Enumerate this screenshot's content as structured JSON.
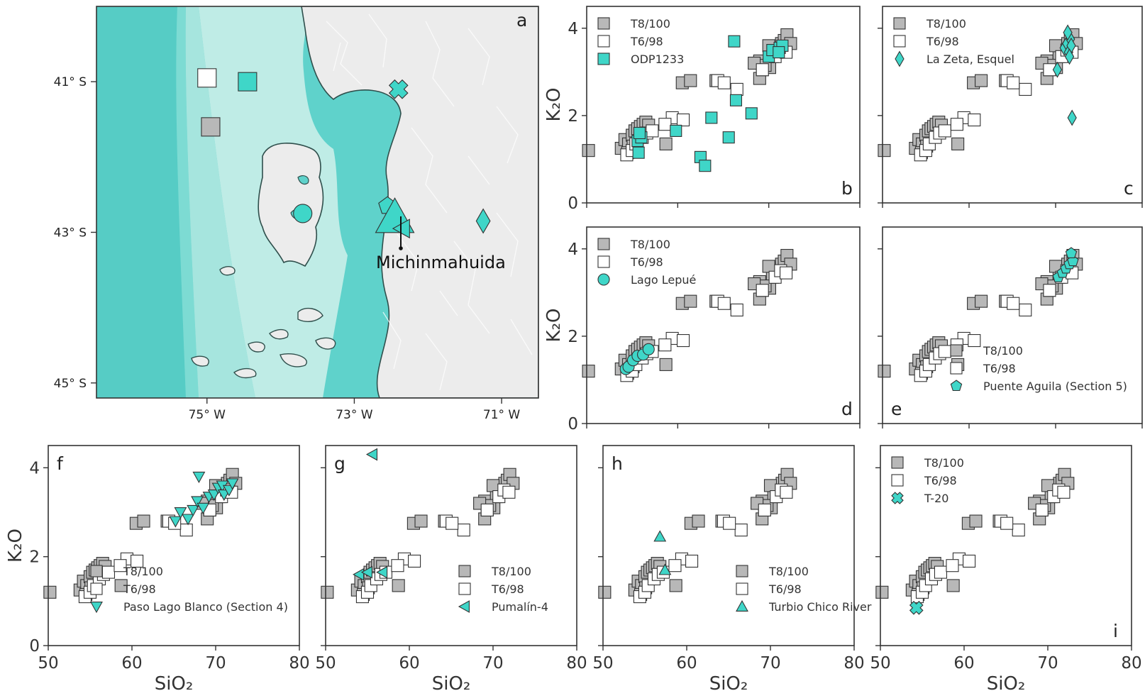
{
  "colors": {
    "teal": "#3fd6c8",
    "teal_light": "#b9e9e3",
    "ocean_deep": "#5fd2cb",
    "ocean_mid": "#8fe0d8",
    "grey_fill": "#b8b8b8",
    "white_fill": "#ffffff",
    "edge": "#333333",
    "land": "#efefef"
  },
  "map": {
    "panel_letter": "a",
    "lat_ticks": [
      "41° S",
      "43° S",
      "45° S"
    ],
    "lon_ticks": [
      "75° W",
      "73° W",
      "71° W"
    ],
    "volcano_label": "Michinmahuida",
    "sites": [
      {
        "name": "T6/98",
        "symbol": "square",
        "fill": "white",
        "lon": -75.0,
        "lat": -40.95
      },
      {
        "name": "ODP1233",
        "symbol": "square",
        "fill": "teal",
        "lon": -74.45,
        "lat": -41.0
      },
      {
        "name": "T8/100",
        "symbol": "square",
        "fill": "grey",
        "lon": -74.95,
        "lat": -41.6
      },
      {
        "name": "T-20",
        "symbol": "cross",
        "fill": "teal",
        "lon": -72.4,
        "lat": -41.1
      },
      {
        "name": "Lago Lepué",
        "symbol": "circle",
        "fill": "teal",
        "lon": -73.7,
        "lat": -42.75
      },
      {
        "name": "Puente Aguila (Section 5)",
        "symbol": "pentagon",
        "fill": "teal",
        "lon": -72.55,
        "lat": -42.65
      },
      {
        "name": "Turbio Chico River",
        "symbol": "triangle-up",
        "fill": "teal",
        "lon": -72.45,
        "lat": -42.8
      },
      {
        "name": "Pumalín-4",
        "symbol": "triangle-left",
        "fill": "teal",
        "lon": -72.35,
        "lat": -42.95
      },
      {
        "name": "La Zeta, Esquel",
        "symbol": "diamond",
        "fill": "teal",
        "lon": -71.25,
        "lat": -42.85
      }
    ]
  },
  "chart_data": [
    {
      "panel": "b",
      "type": "scatter",
      "xlabel": "",
      "ylabel": "K₂O",
      "xlim": [
        50,
        80
      ],
      "ylim": [
        0,
        4.5
      ],
      "yticks": [
        "0",
        "2",
        "4"
      ],
      "xticks": [],
      "legend_position": "top-left",
      "legend": [
        {
          "label": "T8/100",
          "symbol": "square",
          "fill": "grey"
        },
        {
          "label": "T6/98",
          "symbol": "square",
          "fill": "white"
        },
        {
          "label": "ODP1233",
          "symbol": "square",
          "fill": "teal"
        }
      ],
      "highlight": {
        "name": "ODP1233",
        "symbol": "square",
        "points": [
          [
            55.7,
            1.15
          ],
          [
            55.6,
            1.42
          ],
          [
            56.0,
            1.5
          ],
          [
            55.8,
            1.6
          ],
          [
            59.8,
            1.65
          ],
          [
            62.5,
            1.05
          ],
          [
            63.0,
            0.85
          ],
          [
            63.7,
            1.95
          ],
          [
            65.6,
            1.5
          ],
          [
            66.4,
            2.35
          ],
          [
            68.1,
            2.05
          ],
          [
            66.2,
            3.7
          ],
          [
            70.0,
            3.35
          ],
          [
            70.4,
            3.5
          ],
          [
            71.2,
            3.55
          ],
          [
            71.5,
            3.6
          ],
          [
            71.1,
            3.45
          ]
        ]
      }
    },
    {
      "panel": "c",
      "type": "scatter",
      "xlabel": "",
      "ylabel": "",
      "xlim": [
        50,
        80
      ],
      "ylim": [
        0,
        4.5
      ],
      "yticks": [],
      "xticks": [],
      "legend_position": "top-left",
      "legend": [
        {
          "label": "T8/100",
          "symbol": "square",
          "fill": "grey"
        },
        {
          "label": "T6/98",
          "symbol": "square",
          "fill": "white"
        },
        {
          "label": "La Zeta, Esquel",
          "symbol": "diamond",
          "fill": "teal"
        }
      ],
      "highlight": {
        "name": "La Zeta, Esquel",
        "symbol": "diamond",
        "points": [
          [
            70.2,
            3.05
          ],
          [
            71.0,
            3.55
          ],
          [
            71.3,
            3.65
          ],
          [
            71.5,
            3.45
          ],
          [
            71.7,
            3.75
          ],
          [
            71.4,
            3.9
          ],
          [
            71.8,
            3.6
          ],
          [
            71.6,
            3.35
          ],
          [
            71.9,
            1.95
          ]
        ]
      }
    },
    {
      "panel": "d",
      "type": "scatter",
      "xlabel": "",
      "ylabel": "K₂O",
      "xlim": [
        50,
        80
      ],
      "ylim": [
        0,
        4.5
      ],
      "yticks": [
        "0",
        "2",
        "4"
      ],
      "xticks": [],
      "legend_position": "top-left",
      "legend": [
        {
          "label": "T8/100",
          "symbol": "square",
          "fill": "grey"
        },
        {
          "label": "T6/98",
          "symbol": "square",
          "fill": "white"
        },
        {
          "label": "Lago Lepué",
          "symbol": "circle",
          "fill": "teal"
        }
      ],
      "highlight": {
        "name": "Lago Lepué",
        "symbol": "circle",
        "points": [
          [
            54.3,
            1.25
          ],
          [
            54.6,
            1.3
          ],
          [
            55.1,
            1.45
          ],
          [
            55.6,
            1.55
          ],
          [
            56.2,
            1.58
          ],
          [
            56.8,
            1.7
          ]
        ]
      }
    },
    {
      "panel": "e",
      "type": "scatter",
      "xlabel": "",
      "ylabel": "",
      "xlim": [
        50,
        80
      ],
      "ylim": [
        0,
        4.5
      ],
      "yticks": [],
      "xticks": [],
      "legend_position": "bottom-center",
      "legend": [
        {
          "label": "T8/100",
          "symbol": "square",
          "fill": "grey"
        },
        {
          "label": "T6/98",
          "symbol": "square",
          "fill": "white"
        },
        {
          "label": "Puente Aguila (Section 5)",
          "symbol": "pentagon",
          "fill": "teal"
        }
      ],
      "highlight": {
        "name": "Puente Aguila (Section 5)",
        "symbol": "pentagon",
        "points": [
          [
            70.3,
            3.35
          ],
          [
            70.8,
            3.45
          ],
          [
            71.2,
            3.55
          ],
          [
            71.6,
            3.65
          ],
          [
            72.0,
            3.72
          ],
          [
            71.8,
            3.9
          ]
        ]
      }
    },
    {
      "panel": "f",
      "type": "scatter",
      "xlabel": "SiO₂",
      "ylabel": "K₂O",
      "xlim": [
        50,
        80
      ],
      "ylim": [
        0,
        4.5
      ],
      "yticks": [
        "0",
        "2",
        "4"
      ],
      "xticks": [
        "50",
        "60",
        "70",
        "80"
      ],
      "legend_position": "bottom-left",
      "legend": [
        {
          "label": "T8/100",
          "symbol": "square",
          "fill": "grey"
        },
        {
          "label": "T6/98",
          "symbol": "square",
          "fill": "white"
        },
        {
          "label": "Paso Lago Blanco (Section 4)",
          "symbol": "triangle-down",
          "fill": "teal"
        }
      ],
      "highlight": {
        "name": "Paso Lago Blanco (Section 4)",
        "symbol": "triangle-down",
        "points": [
          [
            65.2,
            2.8
          ],
          [
            65.8,
            3.0
          ],
          [
            66.7,
            2.85
          ],
          [
            67.3,
            3.05
          ],
          [
            67.8,
            3.25
          ],
          [
            68.5,
            3.1
          ],
          [
            68.0,
            3.8
          ],
          [
            69.2,
            3.35
          ],
          [
            69.8,
            3.4
          ],
          [
            70.3,
            3.55
          ],
          [
            70.8,
            3.6
          ],
          [
            71.0,
            3.4
          ],
          [
            71.6,
            3.5
          ],
          [
            72.0,
            3.65
          ]
        ]
      }
    },
    {
      "panel": "g",
      "type": "scatter",
      "xlabel": "SiO₂",
      "ylabel": "",
      "xlim": [
        50,
        80
      ],
      "ylim": [
        0,
        4.5
      ],
      "yticks": [],
      "xticks": [
        "50",
        "60",
        "70",
        "80"
      ],
      "legend_position": "bottom-right",
      "legend": [
        {
          "label": "T8/100",
          "symbol": "square",
          "fill": "grey"
        },
        {
          "label": "T6/98",
          "symbol": "square",
          "fill": "white"
        },
        {
          "label": "Pumalín-4",
          "symbol": "triangle-left",
          "fill": "teal"
        }
      ],
      "highlight": {
        "name": "Pumalín-4",
        "symbol": "triangle-left",
        "points": [
          [
            54.0,
            1.6
          ],
          [
            55.0,
            1.65
          ],
          [
            56.8,
            1.65
          ],
          [
            55.6,
            4.3
          ]
        ]
      }
    },
    {
      "panel": "h",
      "type": "scatter",
      "xlabel": "SiO₂",
      "ylabel": "",
      "xlim": [
        50,
        80
      ],
      "ylim": [
        0,
        4.5
      ],
      "yticks": [],
      "xticks": [
        "50",
        "60",
        "70",
        "80"
      ],
      "legend_position": "bottom-right",
      "legend": [
        {
          "label": "T8/100",
          "symbol": "square",
          "fill": "grey"
        },
        {
          "label": "T6/98",
          "symbol": "square",
          "fill": "white"
        },
        {
          "label": "Turbio Chico River",
          "symbol": "triangle-up",
          "fill": "teal"
        }
      ],
      "highlight": {
        "name": "Turbio Chico River",
        "symbol": "triangle-up",
        "points": [
          [
            56.8,
            2.45
          ],
          [
            57.4,
            1.7
          ]
        ]
      }
    },
    {
      "panel": "i",
      "type": "scatter",
      "xlabel": "SiO₂",
      "ylabel": "",
      "xlim": [
        50,
        80
      ],
      "ylim": [
        0,
        4.5
      ],
      "yticks": [],
      "xticks": [
        "50",
        "60",
        "70",
        "80"
      ],
      "legend_position": "top-left",
      "legend": [
        {
          "label": "T8/100",
          "symbol": "square",
          "fill": "grey"
        },
        {
          "label": "T6/98",
          "symbol": "square",
          "fill": "white"
        },
        {
          "label": "T-20",
          "symbol": "cross",
          "fill": "teal"
        }
      ],
      "highlight": {
        "name": "T-20",
        "symbol": "cross",
        "points": [
          [
            54.3,
            0.85
          ]
        ]
      }
    }
  ],
  "reference_series": {
    "T8/100": [
      [
        50.2,
        1.2
      ],
      [
        53.8,
        1.25
      ],
      [
        54.2,
        1.45
      ],
      [
        54.6,
        1.35
      ],
      [
        55.0,
        1.55
      ],
      [
        55.3,
        1.65
      ],
      [
        55.6,
        1.7
      ],
      [
        55.9,
        1.75
      ],
      [
        56.2,
        1.8
      ],
      [
        56.5,
        1.85
      ],
      [
        56.8,
        1.78
      ],
      [
        55.1,
        1.3
      ],
      [
        54.5,
        1.15
      ],
      [
        58.7,
        1.35
      ],
      [
        60.5,
        2.75
      ],
      [
        61.4,
        2.8
      ],
      [
        64.2,
        2.8
      ],
      [
        69.0,
        2.85
      ],
      [
        69.3,
        3.05
      ],
      [
        69.0,
        3.25
      ],
      [
        70.1,
        3.1
      ],
      [
        70.4,
        3.35
      ],
      [
        70.8,
        3.45
      ],
      [
        71.1,
        3.55
      ],
      [
        71.4,
        3.65
      ],
      [
        71.7,
        3.72
      ],
      [
        72.0,
        3.85
      ],
      [
        72.4,
        3.65
      ],
      [
        70.0,
        3.6
      ],
      [
        69.6,
        3.15
      ],
      [
        68.4,
        3.2
      ]
    ],
    "T6/98": [
      [
        54.4,
        1.1
      ],
      [
        55.0,
        1.2
      ],
      [
        55.4,
        1.35
      ],
      [
        56.1,
        1.5
      ],
      [
        56.6,
        1.6
      ],
      [
        57.2,
        1.65
      ],
      [
        59.4,
        1.95
      ],
      [
        60.6,
        1.9
      ],
      [
        58.6,
        1.8
      ],
      [
        64.4,
        2.8
      ],
      [
        66.5,
        2.6
      ],
      [
        65.1,
        2.75
      ],
      [
        70.7,
        3.35
      ],
      [
        71.3,
        3.5
      ],
      [
        71.9,
        3.45
      ],
      [
        69.3,
        3.05
      ]
    ]
  }
}
